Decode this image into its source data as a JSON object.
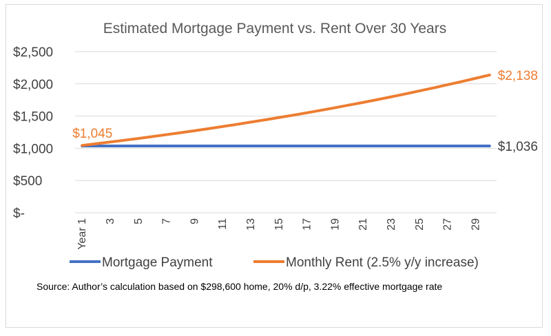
{
  "chart_data": {
    "type": "line",
    "title": "Estimated Mortgage Payment vs. Rent Over 30 Years",
    "xlabel": "",
    "ylabel": "",
    "ylim": [
      0,
      2500
    ],
    "yticks": [
      {
        "value": 0,
        "label": "$-"
      },
      {
        "value": 500,
        "label": "$500"
      },
      {
        "value": 1000,
        "label": "$1,000"
      },
      {
        "value": 1500,
        "label": "$1,500"
      },
      {
        "value": 2000,
        "label": "$2,000"
      },
      {
        "value": 2500,
        "label": "$2,500"
      }
    ],
    "x": [
      1,
      2,
      3,
      4,
      5,
      6,
      7,
      8,
      9,
      10,
      11,
      12,
      13,
      14,
      15,
      16,
      17,
      18,
      19,
      20,
      21,
      22,
      23,
      24,
      25,
      26,
      27,
      28,
      29,
      30
    ],
    "xtick_labels": [
      {
        "x": 1,
        "label": "Year 1"
      },
      {
        "x": 3,
        "label": "3"
      },
      {
        "x": 5,
        "label": "5"
      },
      {
        "x": 7,
        "label": "7"
      },
      {
        "x": 9,
        "label": "9"
      },
      {
        "x": 11,
        "label": "11"
      },
      {
        "x": 13,
        "label": "13"
      },
      {
        "x": 15,
        "label": "15"
      },
      {
        "x": 17,
        "label": "17"
      },
      {
        "x": 19,
        "label": "19"
      },
      {
        "x": 21,
        "label": "21"
      },
      {
        "x": 23,
        "label": "23"
      },
      {
        "x": 25,
        "label": "25"
      },
      {
        "x": 27,
        "label": "27"
      },
      {
        "x": 29,
        "label": "29"
      }
    ],
    "series": [
      {
        "name": "Mortgage Payment",
        "color": "#4472C4",
        "values": [
          1036,
          1036,
          1036,
          1036,
          1036,
          1036,
          1036,
          1036,
          1036,
          1036,
          1036,
          1036,
          1036,
          1036,
          1036,
          1036,
          1036,
          1036,
          1036,
          1036,
          1036,
          1036,
          1036,
          1036,
          1036,
          1036,
          1036,
          1036,
          1036,
          1036
        ],
        "end_label": "$1,036"
      },
      {
        "name": "Monthly Rent (2.5% y/y increase)",
        "color": "#ED7D31",
        "values": [
          1045,
          1071,
          1098,
          1125,
          1153,
          1182,
          1212,
          1242,
          1273,
          1305,
          1338,
          1371,
          1406,
          1441,
          1477,
          1514,
          1551,
          1590,
          1630,
          1671,
          1712,
          1755,
          1799,
          1844,
          1890,
          1937,
          1986,
          2035,
          2086,
          2138
        ],
        "start_label": "$1,045",
        "end_label": "$2,138"
      }
    ],
    "grid": true,
    "legend": "bottom",
    "source_note": "Source: Author’s calculation based on $298,600 home, 20% d/p, 3.22% effective mortgage rate"
  }
}
